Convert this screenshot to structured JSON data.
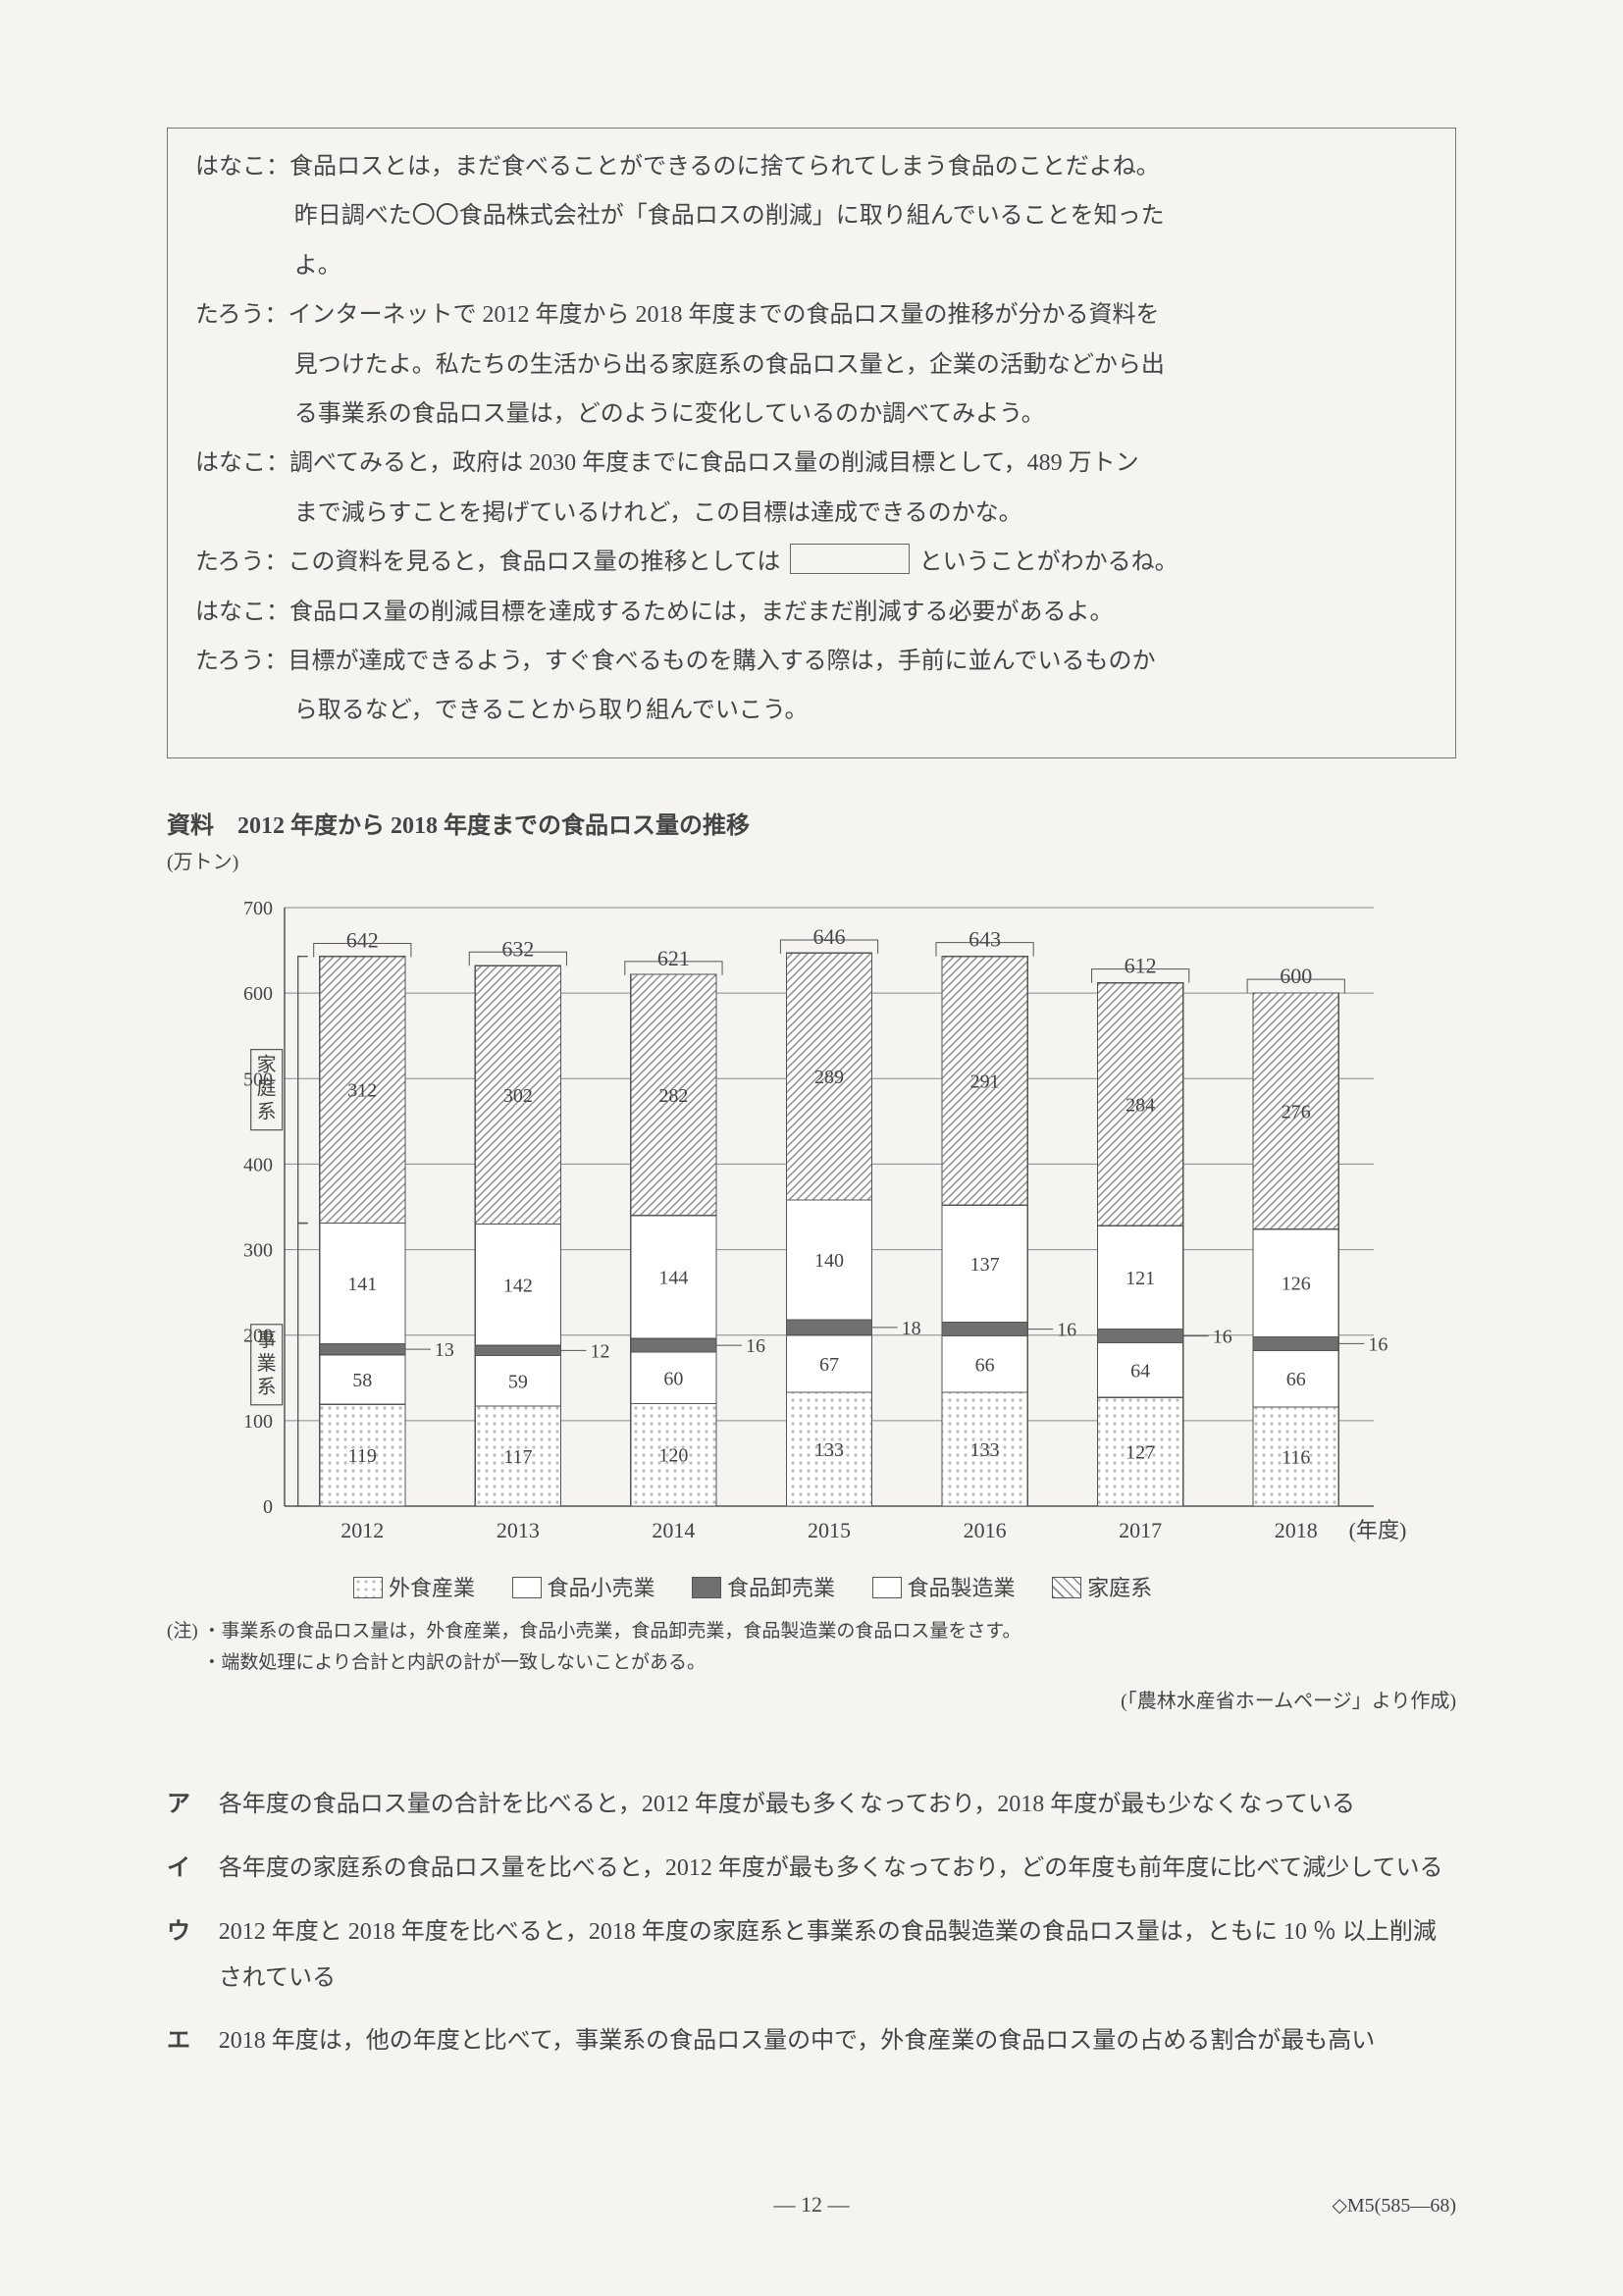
{
  "dialogue": {
    "l1a": "はなこ：食品ロスとは，まだ食べることができるのに捨てられてしまう食品のことだよね。",
    "l1b": "昨日調べた〇〇食品株式会社が「食品ロスの削減」に取り組んでいることを知った",
    "l1c": "よ。",
    "l2a": "たろう：インターネットで 2012 年度から 2018 年度までの食品ロス量の推移が分かる資料を",
    "l2b": "見つけたよ。私たちの生活から出る家庭系の食品ロス量と，企業の活動などから出",
    "l2c": "る事業系の食品ロス量は，どのように変化しているのか調べてみよう。",
    "l3a": "はなこ：調べてみると，政府は 2030 年度までに食品ロス量の削減目標として，489 万トン",
    "l3b": "まで減らすことを掲げているけれど，この目標は達成できるのかな。",
    "l4a": "たろう：この資料を見ると，食品ロス量の推移としては",
    "l4b": "ということがわかるね。",
    "l5": "はなこ：食品ロス量の削減目標を達成するためには，まだまだ削減する必要があるよ。",
    "l6a": "たろう：目標が達成できるよう，すぐ食べるものを購入する際は，手前に並んでいるものか",
    "l6b": "ら取るなど，できることから取り組んでいこう。"
  },
  "chart": {
    "title": "資料　2012 年度から 2018 年度までの食品ロス量の推移",
    "unit": "(万トン)",
    "type": "stacked-bar",
    "years": [
      "2012",
      "2013",
      "2014",
      "2015",
      "2016",
      "2017",
      "2018"
    ],
    "xaxis_suffix": "(年度)",
    "ylim": [
      0,
      700
    ],
    "ytick_step": 100,
    "yticks": [
      0,
      100,
      200,
      300,
      400,
      500,
      600,
      700
    ],
    "totals": [
      642,
      632,
      621,
      646,
      643,
      612,
      600
    ],
    "series": {
      "gaishoku": {
        "label": "外食産業",
        "values": [
          119,
          117,
          120,
          133,
          133,
          127,
          116
        ]
      },
      "kouri": {
        "label": "食品小売業",
        "values": [
          58,
          59,
          60,
          67,
          66,
          64,
          66
        ]
      },
      "oroshi": {
        "label": "食品卸売業",
        "values": [
          13,
          12,
          16,
          18,
          16,
          16,
          16
        ]
      },
      "seizou": {
        "label": "食品製造業",
        "values": [
          141,
          142,
          144,
          140,
          137,
          121,
          126
        ]
      },
      "katei": {
        "label": "家庭系",
        "values": [
          312,
          302,
          282,
          289,
          291,
          284,
          276
        ]
      }
    },
    "stack_order": [
      "gaishoku",
      "kouri",
      "oroshi",
      "seizou",
      "katei"
    ],
    "colors": {
      "axis": "#555555",
      "grid": "#888888",
      "bar_border": "#555555",
      "dot_fill": "#bdbdbd",
      "hatch": "#8a8a8a",
      "solid_dark": "#707070",
      "white": "#ffffff",
      "background": "#f5f4f1"
    },
    "cat_labels": {
      "katei": "家庭系",
      "jigyou": "事業系"
    },
    "bar_width_ratio": 0.55
  },
  "legend": [
    {
      "key": "gaishoku",
      "label": "外食産業"
    },
    {
      "key": "kouri",
      "label": "食品小売業"
    },
    {
      "key": "oroshi",
      "label": "食品卸売業"
    },
    {
      "key": "seizou",
      "label": "食品製造業"
    },
    {
      "key": "katei",
      "label": "家庭系"
    }
  ],
  "notes": {
    "prefix": "(注)",
    "n1": "・事業系の食品ロス量は，外食産業，食品小売業，食品卸売業，食品製造業の食品ロス量をさす。",
    "n2": "・端数処理により合計と内訳の計が一致しないことがある。"
  },
  "source": "(「農林水産省ホームページ」より作成)",
  "options": {
    "a": "各年度の食品ロス量の合計を比べると，2012 年度が最も多くなっており，2018 年度が最も少なくなっている",
    "b": "各年度の家庭系の食品ロス量を比べると，2012 年度が最も多くなっており，どの年度も前年度に比べて減少している",
    "c": "2012 年度と 2018 年度を比べると，2018 年度の家庭系と事業系の食品製造業の食品ロス量は，ともに 10 ％ 以上削減されている",
    "d": "2018 年度は，他の年度と比べて，事業系の食品ロス量の中で，外食産業の食品ロス量の占める割合が最も高い"
  },
  "page_footer": {
    "center": "— 12 —",
    "right": "◇M5(585—68)"
  }
}
